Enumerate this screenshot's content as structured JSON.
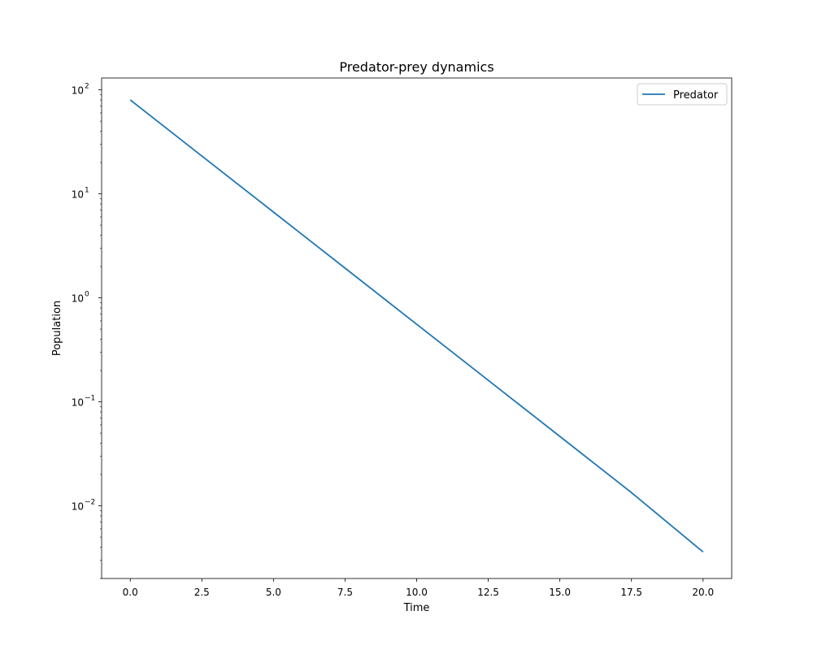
{
  "chart_data": {
    "type": "line",
    "title": "Predator-prey dynamics",
    "xlabel": "Time",
    "ylabel": "Population",
    "xlim": [
      -1.0,
      21.0
    ],
    "ylim": [
      0.002,
      130
    ],
    "yscale": "log",
    "grid": false,
    "legend_position": "upper right",
    "x_ticks": [
      0.0,
      2.5,
      5.0,
      7.5,
      10.0,
      12.5,
      15.0,
      17.5,
      20.0
    ],
    "x_tick_labels": [
      "0.0",
      "2.5",
      "5.0",
      "7.5",
      "10.0",
      "12.5",
      "15.0",
      "17.5",
      "20.0"
    ],
    "y_ticks": [
      {
        "value": 100,
        "base": "10",
        "exp": "2"
      },
      {
        "value": 10,
        "base": "10",
        "exp": "1"
      },
      {
        "value": 1,
        "base": "10",
        "exp": "0"
      },
      {
        "value": 0.1,
        "base": "10",
        "exp": "−1"
      },
      {
        "value": 0.01,
        "base": "10",
        "exp": "−2"
      }
    ],
    "series": [
      {
        "name": "Predator",
        "color": "#1f77b4",
        "x": [
          0,
          2.5,
          5,
          7.5,
          10,
          12.5,
          15,
          17.5,
          20
        ],
        "y": [
          80,
          23.1,
          6.68,
          1.93,
          0.557,
          0.161,
          0.0465,
          0.0134,
          0.0036
        ]
      }
    ]
  }
}
